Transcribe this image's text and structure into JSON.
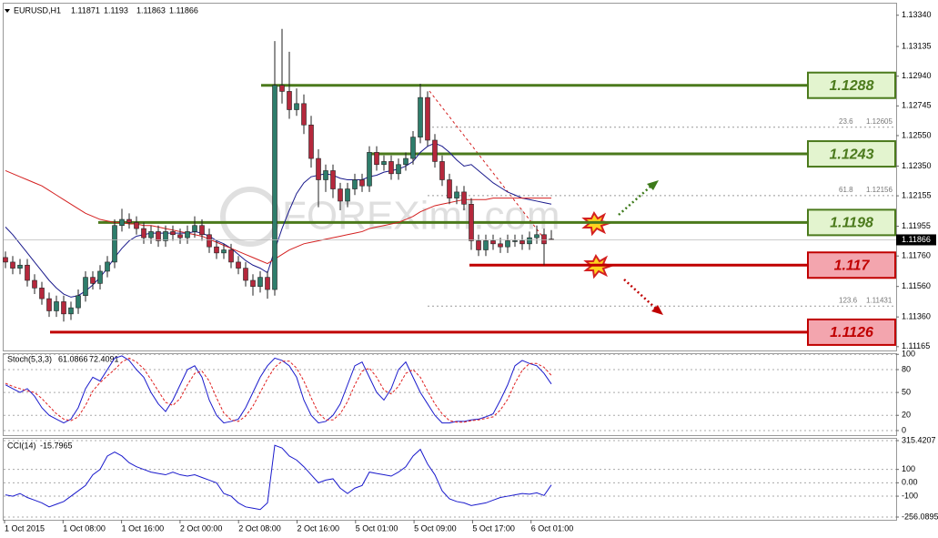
{
  "chart_data": {
    "type": "candlestick",
    "title": "EURUSD,H1",
    "watermark": "FOREXimf.com",
    "ylim": [
      1.1114,
      1.1341
    ],
    "yticks": [
      {
        "value": 1.1334,
        "label": "1.13340"
      },
      1.13135,
      {
        "value": 1.1294,
        "label": "1.12940"
      },
      1.12745,
      {
        "value": 1.1255,
        "label": "1.12550"
      },
      {
        "value": 1.1235,
        "label": "1.12350"
      },
      1.12155,
      1.11955,
      {
        "value": 1.1176,
        "label": "1.11760"
      },
      {
        "value": 1.1156,
        "label": "1.11560"
      },
      {
        "value": 1.1136,
        "label": "1.11360"
      },
      1.11165
    ],
    "time_labels": [
      "1 Oct 2015",
      "1 Oct 08:00",
      "1 Oct 16:00",
      "2 Oct 00:00",
      "2 Oct 08:00",
      "2 Oct 16:00",
      "5 Oct 01:00",
      "5 Oct 09:00",
      "5 Oct 17:00",
      "6 Oct 01:00"
    ],
    "bull_color": "#2e7d6b",
    "bear_color": "#b5283c",
    "candles": [
      [
        1.1175,
        1.1179,
        1.1168,
        1.1172
      ],
      [
        1.1172,
        1.1176,
        1.1164,
        1.1168
      ],
      [
        1.1168,
        1.1174,
        1.1164,
        1.117
      ],
      [
        1.117,
        1.1174,
        1.1156,
        1.116
      ],
      [
        1.116,
        1.1164,
        1.1151,
        1.1155
      ],
      [
        1.1155,
        1.1159,
        1.1144,
        1.1148
      ],
      [
        1.1148,
        1.1152,
        1.1136,
        1.114
      ],
      [
        1.114,
        1.115,
        1.1136,
        1.1146
      ],
      [
        1.1146,
        1.115,
        1.1133,
        1.1138
      ],
      [
        1.1138,
        1.1146,
        1.1134,
        1.1142
      ],
      [
        1.1142,
        1.1154,
        1.1138,
        1.115
      ],
      [
        1.115,
        1.1166,
        1.1146,
        1.1162
      ],
      [
        1.1162,
        1.1166,
        1.1154,
        1.1158
      ],
      [
        1.1158,
        1.117,
        1.1154,
        1.1166
      ],
      [
        1.1166,
        1.1176,
        1.1162,
        1.1172
      ],
      [
        1.1172,
        1.12,
        1.1168,
        1.1196
      ],
      [
        1.1196,
        1.1207,
        1.1192,
        1.12
      ],
      [
        1.12,
        1.1204,
        1.1194,
        1.1198
      ],
      [
        1.1198,
        1.1202,
        1.119,
        1.1194
      ],
      [
        1.1194,
        1.1198,
        1.1184,
        1.1188
      ],
      [
        1.1188,
        1.1196,
        1.1184,
        1.1192
      ],
      [
        1.1192,
        1.1196,
        1.1182,
        1.1186
      ],
      [
        1.1186,
        1.1196,
        1.1182,
        1.1192
      ],
      [
        1.1192,
        1.1196,
        1.1186,
        1.119
      ],
      [
        1.119,
        1.1194,
        1.1184,
        1.1188
      ],
      [
        1.1188,
        1.1196,
        1.1184,
        1.1192
      ],
      [
        1.1192,
        1.1202,
        1.1188,
        1.1196
      ],
      [
        1.1196,
        1.12,
        1.1186,
        1.119
      ],
      [
        1.119,
        1.1194,
        1.1178,
        1.1182
      ],
      [
        1.1182,
        1.1186,
        1.1174,
        1.1178
      ],
      [
        1.1178,
        1.1184,
        1.1174,
        1.118
      ],
      [
        1.118,
        1.1184,
        1.1168,
        1.1172
      ],
      [
        1.1172,
        1.1176,
        1.1164,
        1.1168
      ],
      [
        1.1168,
        1.1172,
        1.1156,
        1.116
      ],
      [
        1.116,
        1.1164,
        1.115,
        1.1156
      ],
      [
        1.1156,
        1.1166,
        1.1152,
        1.1162
      ],
      [
        1.1162,
        1.1166,
        1.1148,
        1.1154
      ],
      [
        1.1154,
        1.1317,
        1.115,
        1.1288
      ],
      [
        1.1288,
        1.1325,
        1.1276,
        1.1284
      ],
      [
        1.1284,
        1.131,
        1.1266,
        1.1272
      ],
      [
        1.1272,
        1.1286,
        1.1268,
        1.1276
      ],
      [
        1.1276,
        1.1282,
        1.1256,
        1.1262
      ],
      [
        1.1262,
        1.1268,
        1.1234,
        1.124
      ],
      [
        1.124,
        1.1246,
        1.1208,
        1.1226
      ],
      [
        1.1226,
        1.1236,
        1.1218,
        1.1232
      ],
      [
        1.1232,
        1.1236,
        1.1214,
        1.122
      ],
      [
        1.122,
        1.1224,
        1.1206,
        1.1212
      ],
      [
        1.1212,
        1.1224,
        1.1208,
        1.122
      ],
      [
        1.122,
        1.123,
        1.1216,
        1.1226
      ],
      [
        1.1226,
        1.123,
        1.1218,
        1.1222
      ],
      [
        1.1222,
        1.1248,
        1.1218,
        1.1244
      ],
      [
        1.1244,
        1.1248,
        1.1232,
        1.1236
      ],
      [
        1.1236,
        1.1242,
        1.1232,
        1.1238
      ],
      [
        1.1238,
        1.1242,
        1.1226,
        1.123
      ],
      [
        1.123,
        1.124,
        1.1226,
        1.1236
      ],
      [
        1.1236,
        1.1244,
        1.1232,
        1.124
      ],
      [
        1.124,
        1.1258,
        1.1236,
        1.1254
      ],
      [
        1.1254,
        1.1289,
        1.125,
        1.128
      ],
      [
        1.128,
        1.1284,
        1.1248,
        1.1252
      ],
      [
        1.1252,
        1.1256,
        1.1234,
        1.1238
      ],
      [
        1.1238,
        1.1242,
        1.1222,
        1.1226
      ],
      [
        1.1226,
        1.123,
        1.121,
        1.1214
      ],
      [
        1.1214,
        1.1222,
        1.121,
        1.1218
      ],
      [
        1.1218,
        1.1222,
        1.1206,
        1.121
      ],
      [
        1.121,
        1.1214,
        1.118,
        1.1186
      ],
      [
        1.1186,
        1.119,
        1.1176,
        1.118
      ],
      [
        1.118,
        1.119,
        1.1176,
        1.1186
      ],
      [
        1.1186,
        1.119,
        1.118,
        1.1184
      ],
      [
        1.1184,
        1.1188,
        1.1178,
        1.1182
      ],
      [
        1.1182,
        1.119,
        1.1178,
        1.1186
      ],
      [
        1.1186,
        1.119,
        1.1182,
        1.1186
      ],
      [
        1.1186,
        1.119,
        1.118,
        1.1184
      ],
      [
        1.1184,
        1.1192,
        1.118,
        1.1188
      ],
      [
        1.1188,
        1.1196,
        1.1184,
        1.119
      ],
      [
        1.119,
        1.1194,
        1.117,
        1.1184
      ],
      [
        1.11871,
        1.1193,
        1.11863,
        1.11866
      ]
    ],
    "ma": [
      {
        "color": "#1a1a8c",
        "values": [
          1.1195,
          1.119,
          1.1184,
          1.1178,
          1.1172,
          1.1166,
          1.116,
          1.1155,
          1.1151,
          1.1149,
          1.115,
          1.1153,
          1.1157,
          1.1162,
          1.1168,
          1.1175,
          1.1181,
          1.1186,
          1.1189,
          1.119,
          1.1191,
          1.1191,
          1.1191,
          1.1191,
          1.1191,
          1.1191,
          1.1192,
          1.1191,
          1.1189,
          1.1186,
          1.1184,
          1.1181,
          1.1177,
          1.1173,
          1.117,
          1.1168,
          1.1165,
          1.118,
          1.1194,
          1.1206,
          1.1217,
          1.1224,
          1.1228,
          1.1229,
          1.123,
          1.1229,
          1.1227,
          1.1226,
          1.1226,
          1.1226,
          1.1228,
          1.1229,
          1.1231,
          1.1232,
          1.1233,
          1.1235,
          1.1238,
          1.1244,
          1.1248,
          1.125,
          1.1248,
          1.1244,
          1.1239,
          1.1235,
          1.1236,
          1.1232,
          1.1228,
          1.1224,
          1.1221,
          1.1218,
          1.1216,
          1.1214,
          1.1213,
          1.1212,
          1.1211,
          1.121
        ]
      },
      {
        "color": "#d42020",
        "values": [
          1.1232,
          1.123,
          1.1228,
          1.1226,
          1.1224,
          1.1222,
          1.1219,
          1.1216,
          1.1213,
          1.121,
          1.1207,
          1.1204,
          1.1202,
          1.12,
          1.1199,
          1.1198,
          1.1198,
          1.1197,
          1.1197,
          1.1196,
          1.1196,
          1.1195,
          1.1194,
          1.1193,
          1.1192,
          1.1191,
          1.119,
          1.1189,
          1.1187,
          1.1185,
          1.1183,
          1.1181,
          1.1179,
          1.1177,
          1.1175,
          1.1173,
          1.1171,
          1.1174,
          1.1177,
          1.118,
          1.1182,
          1.1184,
          1.1185,
          1.1186,
          1.1187,
          1.1188,
          1.1189,
          1.119,
          1.1191,
          1.1192,
          1.1194,
          1.1195,
          1.1196,
          1.1197,
          1.1198,
          1.12,
          1.1202,
          1.1205,
          1.1207,
          1.1209,
          1.121,
          1.1211,
          1.1212,
          1.1213,
          1.1213,
          1.1213,
          1.1213,
          1.1214,
          1.1214,
          1.1214,
          1.1214,
          1.1214,
          1.1214,
          1.1214,
          1.1214,
          1.1214
        ]
      }
    ],
    "levels": [
      {
        "value": 1.1288,
        "color": "#4b7a1c",
        "fill": "#e3f4cf"
      },
      {
        "value": 1.1243,
        "color": "#4b7a1c",
        "fill": "#e3f4cf"
      },
      {
        "value": 1.1198,
        "color": "#4b7a1c",
        "fill": "#e3f4cf"
      },
      {
        "value": 1.117,
        "color": "#c00000",
        "fill": "#f3a5ae"
      },
      {
        "value": 1.1126,
        "color": "#c00000",
        "fill": "#f3a5ae"
      }
    ],
    "fib": [
      {
        "level": 23.6,
        "price": 1.12605
      },
      {
        "level": 61.8,
        "price": 1.12156
      },
      {
        "level": 123.6,
        "price": 1.11431
      }
    ],
    "stoch": {
      "name": "Stoch(5,3,3)",
      "ylim": [
        -6,
        101.5
      ],
      "yticks": [
        100,
        80,
        50,
        20,
        0
      ],
      "series": [
        {
          "color": "#1a1acc",
          "values": [
            60,
            55,
            50,
            55,
            45,
            30,
            20,
            15,
            10,
            15,
            30,
            55,
            70,
            65,
            80,
            95,
            98,
            92,
            80,
            70,
            50,
            35,
            25,
            40,
            60,
            80,
            85,
            70,
            40,
            20,
            10,
            12,
            15,
            30,
            50,
            70,
            85,
            95,
            92,
            85,
            70,
            40,
            20,
            10,
            12,
            20,
            35,
            60,
            85,
            90,
            70,
            50,
            40,
            55,
            80,
            90,
            70,
            50,
            35,
            20,
            10,
            10,
            12,
            12,
            14,
            15,
            18,
            22,
            40,
            60,
            85,
            92,
            88,
            85,
            75,
            61.0866
          ]
        },
        {
          "color": "#e02020",
          "values": [
            62,
            58,
            55,
            52,
            50,
            42,
            32,
            22,
            15,
            13,
            18,
            33,
            52,
            63,
            72,
            80,
            90,
            95,
            90,
            81,
            67,
            52,
            37,
            33,
            42,
            60,
            75,
            78,
            65,
            43,
            23,
            14,
            12,
            19,
            32,
            50,
            68,
            83,
            91,
            91,
            82,
            65,
            43,
            23,
            14,
            14,
            22,
            38,
            60,
            78,
            82,
            70,
            53,
            48,
            58,
            75,
            80,
            70,
            52,
            35,
            22,
            13,
            11,
            11,
            13,
            14,
            16,
            18,
            27,
            41,
            62,
            79,
            88,
            88,
            83,
            72.4091
          ]
        }
      ]
    },
    "cci": {
      "name": "CCI(14)",
      "ylim": [
        -256.0895,
        315.4207
      ],
      "yticks": [
        315.4207,
        100,
        {
          "value": 0,
          "label": "0.00"
        },
        -100,
        -256.0895
      ],
      "series": [
        {
          "color": "#1a1acc",
          "values": [
            -90,
            -100,
            -80,
            -110,
            -130,
            -150,
            -180,
            -160,
            -140,
            -100,
            -60,
            -20,
            60,
            100,
            200,
            230,
            200,
            150,
            120,
            100,
            80,
            70,
            60,
            80,
            60,
            50,
            60,
            40,
            20,
            0,
            -80,
            -100,
            -150,
            -180,
            -190,
            -200,
            -150,
            280,
            260,
            200,
            170,
            120,
            60,
            0,
            20,
            30,
            -40,
            -80,
            -40,
            -20,
            80,
            70,
            60,
            50,
            80,
            120,
            200,
            250,
            140,
            60,
            -60,
            -120,
            -140,
            -150,
            -170,
            -160,
            -150,
            -130,
            -110,
            -100,
            -90,
            -80,
            -85,
            -75,
            -95,
            -15.7965
          ]
        }
      ]
    }
  }
}
